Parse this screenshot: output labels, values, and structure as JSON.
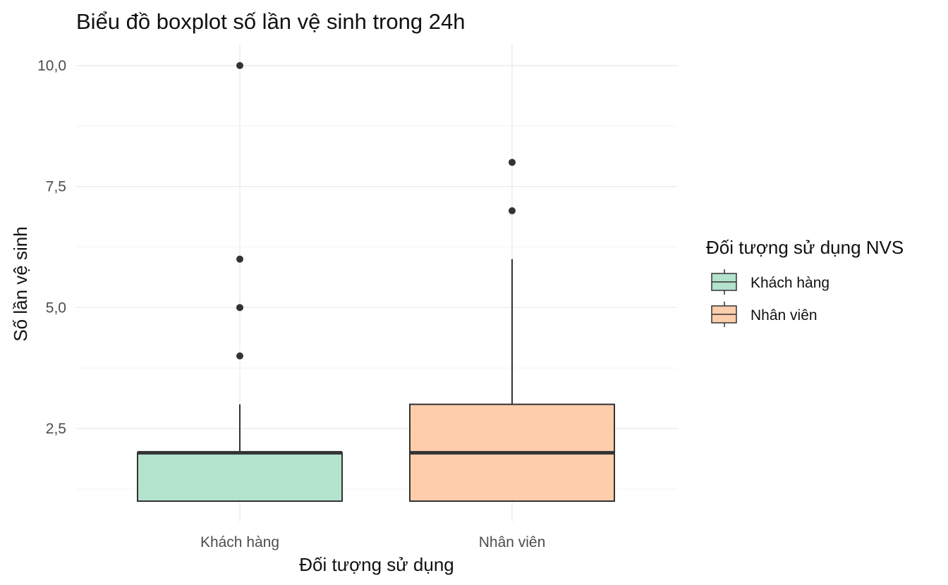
{
  "chart_data": {
    "type": "boxplot",
    "title": "Biểu đồ boxplot số lần vệ sinh trong 24h",
    "xlabel": "Đối tượng sử dụng",
    "ylabel": "Số lần vệ sinh",
    "categories": [
      "Khách hàng",
      "Nhân viên"
    ],
    "y_ticks": [
      2.5,
      5.0,
      7.5,
      10.0
    ],
    "y_tick_labels": [
      "2,5",
      "5,0",
      "7,5",
      "10,0"
    ],
    "ylim": [
      0.75,
      10.4
    ],
    "grid": true,
    "legend": {
      "title": "Đối tượng sử dụng NVS",
      "position": "right",
      "entries": [
        "Khách hàng",
        "Nhân viên"
      ]
    },
    "series": [
      {
        "name": "Khách hàng",
        "color": "#b3e2cd",
        "min": 1,
        "q1": 1,
        "median": 2,
        "q3": 2,
        "max": 3,
        "outliers": [
          4,
          5,
          6,
          10
        ]
      },
      {
        "name": "Nhân viên",
        "color": "#fdcdac",
        "min": 1,
        "q1": 1,
        "median": 2,
        "q3": 3,
        "max": 6,
        "outliers": [
          7,
          8
        ]
      }
    ]
  }
}
